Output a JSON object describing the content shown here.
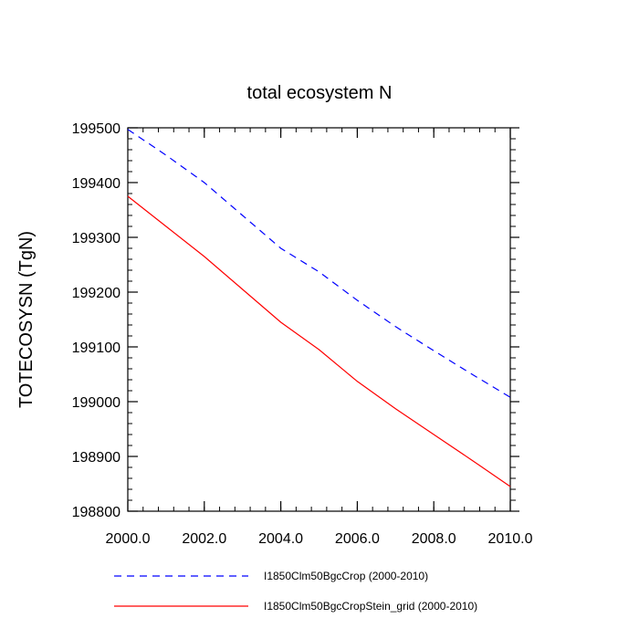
{
  "chart_data": {
    "type": "line",
    "title": "total ecosystem N",
    "xlabel": "",
    "ylabel": "TOTECOSYSN  (TgN)",
    "xlim": [
      2000,
      2010
    ],
    "ylim": [
      198800,
      199500
    ],
    "x_ticks": [
      2000,
      2002,
      2004,
      2006,
      2008,
      2010
    ],
    "x_tick_labels": [
      "2000.0",
      "2002.0",
      "2004.0",
      "2006.0",
      "2008.0",
      "2010.0"
    ],
    "y_ticks": [
      198800,
      198900,
      199000,
      199100,
      199200,
      199300,
      199400,
      199500
    ],
    "y_tick_labels": [
      "198800",
      "198900",
      "199000",
      "199100",
      "199200",
      "199300",
      "199400",
      "199500"
    ],
    "grid": false,
    "legend_placement": "bottom",
    "series": [
      {
        "name": "I1850Clm50BgcCrop (2000-2010)",
        "color": "#0000ff",
        "style": "dashed",
        "x": [
          2000,
          2001,
          2002,
          2003,
          2004,
          2005,
          2006,
          2007,
          2008,
          2009,
          2010
        ],
        "y": [
          199497,
          199450,
          199400,
          199340,
          199280,
          199237,
          199185,
          199137,
          199093,
          199050,
          199008
        ]
      },
      {
        "name": "I1850Clm50BgcCropStein_grid (2000-2010)",
        "color": "#ff0000",
        "style": "solid",
        "x": [
          2000,
          2001,
          2002,
          2003,
          2004,
          2005,
          2006,
          2007,
          2008,
          2009,
          2010
        ],
        "y": [
          199375,
          199320,
          199265,
          199205,
          199145,
          199095,
          199037,
          198987,
          198940,
          198893,
          198845
        ]
      }
    ]
  }
}
